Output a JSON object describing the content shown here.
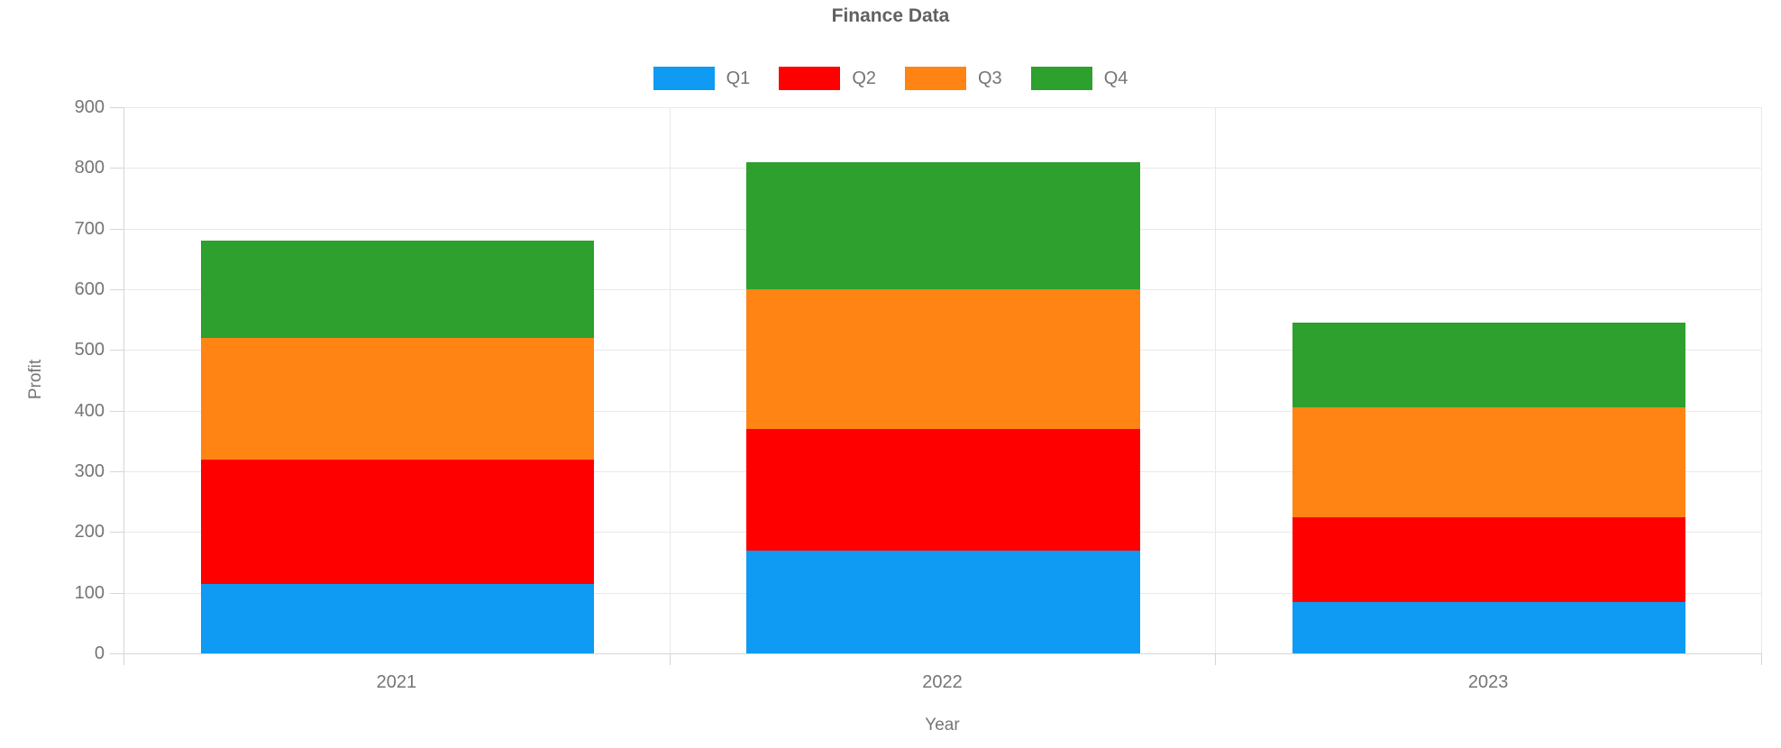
{
  "title": "Finance Data",
  "axes": {
    "x_label": "Year",
    "y_label": "Profit",
    "y_tick_labels": [
      "0",
      "100",
      "200",
      "300",
      "400",
      "500",
      "600",
      "700",
      "800",
      "900"
    ]
  },
  "legend": {
    "items": [
      {
        "label": "Q1",
        "color": "#0F9AF3"
      },
      {
        "label": "Q2",
        "color": "#FF0000"
      },
      {
        "label": "Q3",
        "color": "#FF8414"
      },
      {
        "label": "Q4",
        "color": "#2DA02D"
      }
    ]
  },
  "chart_data": {
    "type": "bar",
    "stacked": true,
    "title": "Finance Data",
    "xlabel": "Year",
    "ylabel": "Profit",
    "categories": [
      "2021",
      "2022",
      "2023"
    ],
    "series": [
      {
        "name": "Q1",
        "color": "#0F9AF3",
        "values": [
          115,
          170,
          85
        ]
      },
      {
        "name": "Q2",
        "color": "#FF0000",
        "values": [
          205,
          200,
          140
        ]
      },
      {
        "name": "Q3",
        "color": "#FF8414",
        "values": [
          200,
          230,
          180
        ]
      },
      {
        "name": "Q4",
        "color": "#2DA02D",
        "values": [
          160,
          210,
          140
        ]
      }
    ],
    "stack_totals": [
      680,
      810,
      545
    ],
    "ylim": [
      0,
      900
    ],
    "ytick_step": 100,
    "grid": true,
    "legend_position": "top",
    "bar_width_fraction_of_band": 0.72
  }
}
